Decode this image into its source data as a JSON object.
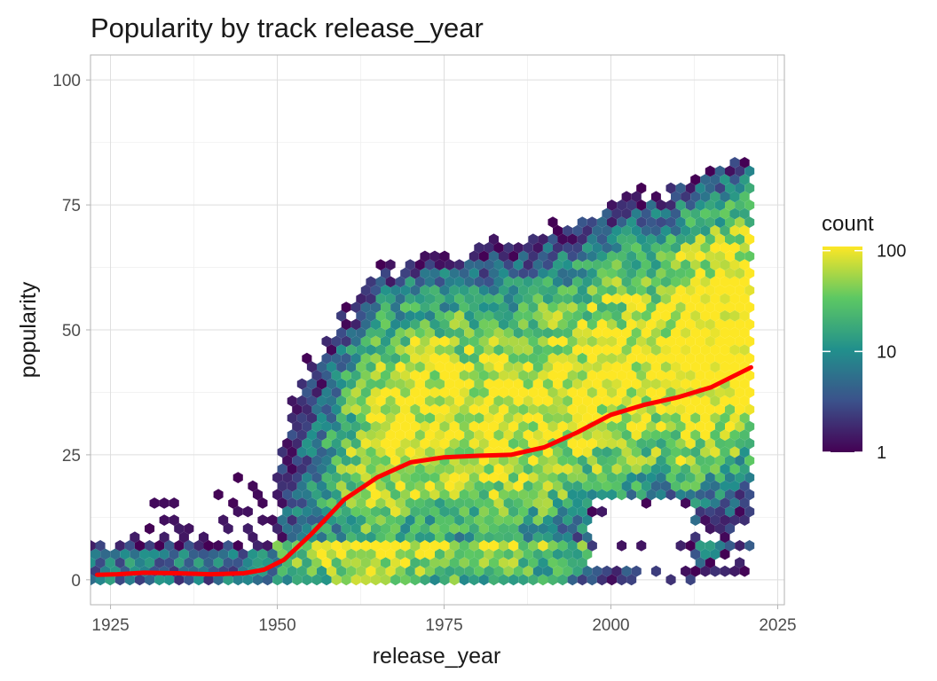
{
  "chart_data": {
    "type": "heatmap",
    "subtype": "hexbin",
    "title": "Popularity by track release_year",
    "xlabel": "release_year",
    "ylabel": "popularity",
    "xlim": [
      1922,
      2026
    ],
    "ylim": [
      -5,
      105
    ],
    "x_ticks": [
      {
        "value": 1925,
        "label": "1925"
      },
      {
        "value": 1950,
        "label": "1950"
      },
      {
        "value": 1975,
        "label": "1975"
      },
      {
        "value": 2000,
        "label": "2000"
      },
      {
        "value": 2025,
        "label": "2025"
      }
    ],
    "y_ticks": [
      {
        "value": 0,
        "label": "0"
      },
      {
        "value": 25,
        "label": "25"
      },
      {
        "value": 50,
        "label": "50"
      },
      {
        "value": 75,
        "label": "75"
      },
      {
        "value": 100,
        "label": "100"
      }
    ],
    "grid": true,
    "legend": {
      "title": "count",
      "scale": "log",
      "palette": "viridis",
      "colors": [
        "#440154",
        "#3b528b",
        "#21908c",
        "#5dc863",
        "#fde725"
      ],
      "ticks": [
        {
          "value": 1,
          "label": "1"
        },
        {
          "value": 10,
          "label": "10"
        },
        {
          "value": 100,
          "label": "100"
        }
      ],
      "range": [
        1,
        110
      ],
      "placement": "right"
    },
    "smooth_line": {
      "color": "#ff0000",
      "x": [
        1923,
        1926,
        1930,
        1935,
        1940,
        1945,
        1948,
        1951,
        1955,
        1960,
        1965,
        1970,
        1975,
        1980,
        1985,
        1990,
        1995,
        2000,
        2005,
        2010,
        2015,
        2021
      ],
      "y": [
        1,
        1.1,
        1.4,
        1.3,
        1.1,
        1.3,
        2,
        4,
        9,
        16,
        20.5,
        23.5,
        24.5,
        24.8,
        25,
        26.5,
        29.5,
        33,
        35,
        36.5,
        38.5,
        42.5
      ]
    },
    "density_model": {
      "year_range": [
        1922,
        2021
      ],
      "popularity_range": [
        0,
        93
      ]
    }
  }
}
